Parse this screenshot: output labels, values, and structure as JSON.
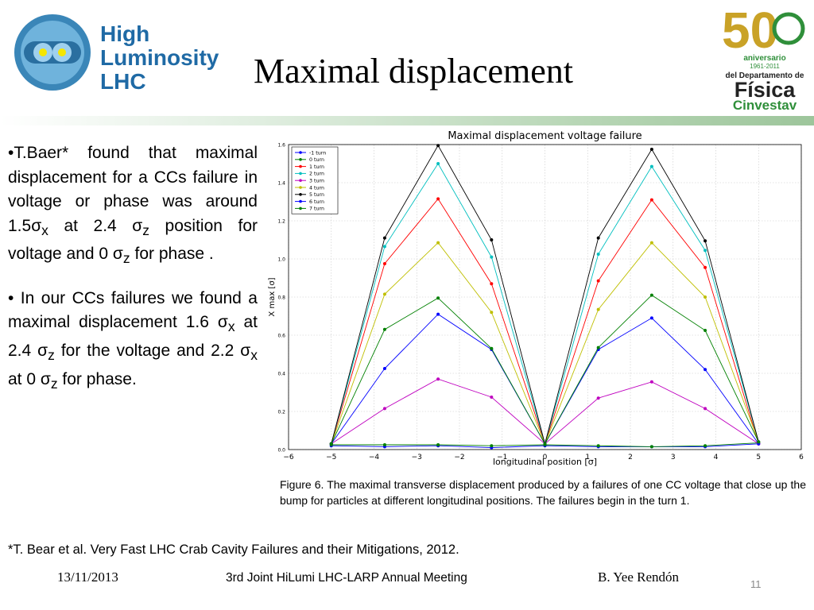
{
  "slide": {
    "title": "Maximal displacement",
    "logo_left": {
      "line1": "High",
      "line2": "Luminosity",
      "line3": "LHC"
    },
    "logo_right": {
      "number": "50",
      "line1": "aniversario",
      "line2": "1961-2011",
      "line3": "del Departamento de",
      "line4": "Física",
      "line5": "Cinvestav"
    },
    "bullets": [
      {
        "parts": [
          "•T.Baer* found that maximal displacement for a CCs failure in voltage or phase was around 1.5σ",
          "x",
          " at 2.4 σ",
          "z",
          "  position for voltage and 0 σ",
          "z",
          " for phase ."
        ]
      },
      {
        "parts": [
          "• In our CCs failures we found a maximal displacement  1.6 σ",
          "x",
          "  at 2.4 σ",
          "z",
          "   for the voltage and 2.2 σ",
          "x",
          "  at  0 σ",
          "z",
          "  for phase."
        ]
      }
    ],
    "caption": "Figure 6.  The  maximal transverse displacement produced by a failures of one  CC voltage that close up the bump  for particles at different longitudinal positions. The failures begin in the turn 1.",
    "footnote": "*T. Bear et al.  Very Fast LHC Crab Cavity Failures and their Mitigations, 2012.",
    "footer": {
      "date": "13/11/2013",
      "meeting": "3rd Joint HiLumi LHC-LARP Annual Meeting",
      "author": "B. Yee Rendón",
      "page": "11"
    }
  },
  "chart_data": {
    "type": "line",
    "title": "Maximal displacement voltage failure",
    "xlabel": "longitudinal position [σ]",
    "ylabel": "X max [σ]",
    "xlim": [
      -6,
      6
    ],
    "ylim": [
      0,
      1.6
    ],
    "xticks": [
      "−6",
      "−5",
      "−4",
      "−3",
      "−2",
      "−1",
      "0",
      "1",
      "2",
      "3",
      "4",
      "5",
      "6"
    ],
    "yticks": [
      "0.0",
      "0.2",
      "0.4",
      "0.6",
      "0.8",
      "1.0",
      "1.2",
      "1.4",
      "1.6"
    ],
    "grid": true,
    "legend_position": "top-left",
    "x": [
      -5,
      -3.75,
      -2.5,
      -1.25,
      0,
      1.25,
      2.5,
      3.75,
      5
    ],
    "series": [
      {
        "name": "-1 turn",
        "color": "#0000ff",
        "values": [
          0.02,
          0.015,
          0.02,
          0.01,
          0.02,
          0.015,
          0.015,
          0.015,
          0.03
        ]
      },
      {
        "name": "0 turn",
        "color": "#008000",
        "values": [
          0.025,
          0.025,
          0.025,
          0.02,
          0.025,
          0.02,
          0.015,
          0.02,
          0.035
        ]
      },
      {
        "name": "1 turn",
        "color": "#ff0000",
        "values": [
          0.03,
          0.975,
          1.315,
          0.87,
          0.03,
          0.885,
          1.31,
          0.955,
          0.03
        ]
      },
      {
        "name": "2 turn",
        "color": "#00bfbf",
        "values": [
          0.03,
          1.065,
          1.5,
          1.01,
          0.03,
          1.025,
          1.485,
          1.045,
          0.04
        ]
      },
      {
        "name": "3 turn",
        "color": "#bf00bf",
        "values": [
          0.03,
          0.215,
          0.37,
          0.275,
          0.03,
          0.27,
          0.355,
          0.215,
          0.03
        ]
      },
      {
        "name": "4 turn",
        "color": "#bfbf00",
        "values": [
          0.03,
          0.815,
          1.085,
          0.72,
          0.03,
          0.735,
          1.085,
          0.8,
          0.04
        ]
      },
      {
        "name": "5 turn",
        "color": "#000000",
        "values": [
          0.03,
          1.11,
          1.595,
          1.1,
          0.03,
          1.11,
          1.575,
          1.095,
          0.04
        ]
      },
      {
        "name": "6 turn",
        "color": "#0000ff",
        "values": [
          0.03,
          0.425,
          0.71,
          0.525,
          0.03,
          0.525,
          0.69,
          0.42,
          0.03
        ]
      },
      {
        "name": "7 turn",
        "color": "#008000",
        "values": [
          0.03,
          0.63,
          0.795,
          0.53,
          0.03,
          0.535,
          0.81,
          0.625,
          0.04
        ]
      }
    ]
  }
}
